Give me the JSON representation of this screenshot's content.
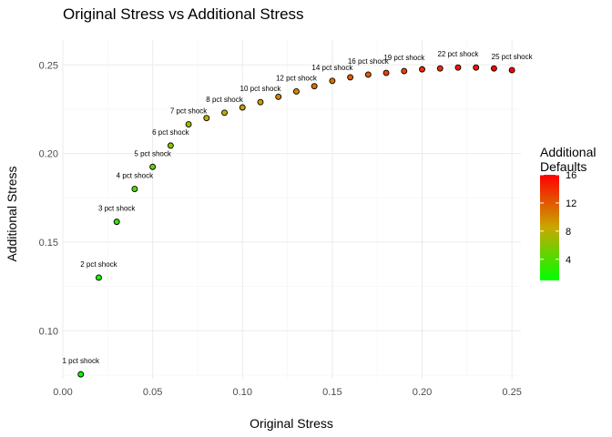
{
  "chart_data": {
    "type": "scatter",
    "title": "Original Stress vs Additional Stress",
    "xlabel": "Original Stress",
    "ylabel": "Additional Stress",
    "xlim": [
      0.0,
      0.255
    ],
    "ylim": [
      0.073,
      0.264
    ],
    "x_ticks": [
      0.0,
      0.05,
      0.1,
      0.15,
      0.2,
      0.25
    ],
    "x_tick_labels": [
      "0.00",
      "0.05",
      "0.10",
      "0.15",
      "0.20",
      "0.25"
    ],
    "y_ticks": [
      0.1,
      0.15,
      0.2,
      0.25
    ],
    "y_tick_labels": [
      "0.10",
      "0.15",
      "0.20",
      "0.25"
    ],
    "grid": true,
    "color_legend": {
      "title": [
        "Additional",
        "Defaults"
      ],
      "range": [
        1,
        16
      ],
      "ticks": [
        4,
        8,
        12,
        16
      ],
      "tick_labels": [
        "4",
        "8",
        "12",
        "16"
      ],
      "low_color": "#00ff00",
      "high_color": "#ff0000",
      "placement": "right"
    },
    "points": [
      {
        "x": 0.01,
        "y": 0.0755,
        "defaults": 1,
        "label": "1 pct shock"
      },
      {
        "x": 0.02,
        "y": 0.13,
        "defaults": 2,
        "label": "2 pct shock"
      },
      {
        "x": 0.03,
        "y": 0.1615,
        "defaults": 3,
        "label": "3 pct shock"
      },
      {
        "x": 0.04,
        "y": 0.18,
        "defaults": 4,
        "label": "4 pct shock"
      },
      {
        "x": 0.05,
        "y": 0.1925,
        "defaults": 5,
        "label": "5 pct shock"
      },
      {
        "x": 0.06,
        "y": 0.2045,
        "defaults": 6,
        "label": "6 pct shock"
      },
      {
        "x": 0.07,
        "y": 0.2165,
        "defaults": 7,
        "label": "7 pct shock"
      },
      {
        "x": 0.08,
        "y": 0.22,
        "defaults": 8,
        "label": ""
      },
      {
        "x": 0.09,
        "y": 0.223,
        "defaults": 8,
        "label": "8 pct shock"
      },
      {
        "x": 0.1,
        "y": 0.226,
        "defaults": 9,
        "label": ""
      },
      {
        "x": 0.11,
        "y": 0.229,
        "defaults": 9,
        "label": "10 pct shock"
      },
      {
        "x": 0.12,
        "y": 0.232,
        "defaults": 10,
        "label": ""
      },
      {
        "x": 0.13,
        "y": 0.235,
        "defaults": 10,
        "label": "12 pct shock"
      },
      {
        "x": 0.14,
        "y": 0.238,
        "defaults": 11,
        "label": ""
      },
      {
        "x": 0.15,
        "y": 0.241,
        "defaults": 11,
        "label": "14 pct shock"
      },
      {
        "x": 0.16,
        "y": 0.243,
        "defaults": 12,
        "label": ""
      },
      {
        "x": 0.17,
        "y": 0.2445,
        "defaults": 12,
        "label": "16 pct shock"
      },
      {
        "x": 0.18,
        "y": 0.2455,
        "defaults": 13,
        "label": ""
      },
      {
        "x": 0.19,
        "y": 0.2465,
        "defaults": 13,
        "label": "19 pct shock"
      },
      {
        "x": 0.2,
        "y": 0.2475,
        "defaults": 14,
        "label": ""
      },
      {
        "x": 0.21,
        "y": 0.248,
        "defaults": 14,
        "label": ""
      },
      {
        "x": 0.22,
        "y": 0.2485,
        "defaults": 15,
        "label": "22 pct shock"
      },
      {
        "x": 0.23,
        "y": 0.2485,
        "defaults": 15,
        "label": ""
      },
      {
        "x": 0.24,
        "y": 0.248,
        "defaults": 16,
        "label": ""
      },
      {
        "x": 0.25,
        "y": 0.247,
        "defaults": 16,
        "label": "25 pct shock"
      }
    ]
  }
}
